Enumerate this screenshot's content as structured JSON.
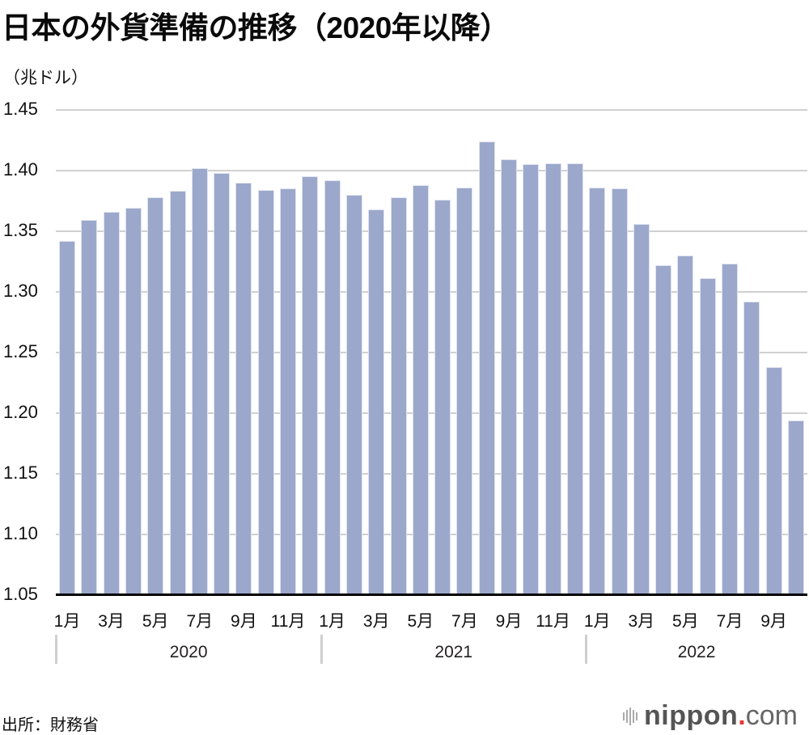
{
  "title": "日本の外貨準備の推移（2020年以降）",
  "unit_label": "（兆ドル）",
  "source": "出所：財務省",
  "logo": {
    "brand": "nippon",
    "dot": ".",
    "suffix": "com"
  },
  "colors": {
    "bar": "#9ba8cb",
    "grid": "#d0d0d0",
    "axis": "#000000",
    "logo_dot": "#e53935"
  },
  "chart_data": {
    "type": "bar",
    "title": "日本の外貨準備の推移（2020年以降）",
    "xlabel": "",
    "ylabel": "兆ドル",
    "ylim": [
      1.05,
      1.45
    ],
    "yticks": [
      "1.45",
      "1.40",
      "1.35",
      "1.30",
      "1.25",
      "1.20",
      "1.15",
      "1.10",
      "1.05"
    ],
    "grid": true,
    "legend": null,
    "categories": [
      "2020-01",
      "2020-02",
      "2020-03",
      "2020-04",
      "2020-05",
      "2020-06",
      "2020-07",
      "2020-08",
      "2020-09",
      "2020-10",
      "2020-11",
      "2020-12",
      "2021-01",
      "2021-02",
      "2021-03",
      "2021-04",
      "2021-05",
      "2021-06",
      "2021-07",
      "2021-08",
      "2021-09",
      "2021-10",
      "2021-11",
      "2021-12",
      "2022-01",
      "2022-02",
      "2022-03",
      "2022-04",
      "2022-05",
      "2022-06",
      "2022-07",
      "2022-08",
      "2022-09",
      "2022-10"
    ],
    "values": [
      1.342,
      1.359,
      1.366,
      1.369,
      1.378,
      1.383,
      1.402,
      1.398,
      1.39,
      1.384,
      1.385,
      1.395,
      1.392,
      1.38,
      1.368,
      1.378,
      1.388,
      1.376,
      1.386,
      1.424,
      1.409,
      1.405,
      1.406,
      1.406,
      1.386,
      1.385,
      1.356,
      1.322,
      1.33,
      1.311,
      1.323,
      1.292,
      1.238,
      1.194
    ],
    "xtick_labels": [
      {
        "index": 0,
        "label": "1月"
      },
      {
        "index": 2,
        "label": "3月"
      },
      {
        "index": 4,
        "label": "5月"
      },
      {
        "index": 6,
        "label": "7月"
      },
      {
        "index": 8,
        "label": "9月"
      },
      {
        "index": 10,
        "label": "11月"
      },
      {
        "index": 12,
        "label": "1月"
      },
      {
        "index": 14,
        "label": "3月"
      },
      {
        "index": 16,
        "label": "5月"
      },
      {
        "index": 18,
        "label": "7月"
      },
      {
        "index": 20,
        "label": "9月"
      },
      {
        "index": 22,
        "label": "11月"
      },
      {
        "index": 24,
        "label": "1月"
      },
      {
        "index": 26,
        "label": "3月"
      },
      {
        "index": 28,
        "label": "5月"
      },
      {
        "index": 30,
        "label": "7月"
      },
      {
        "index": 32,
        "label": "9月"
      }
    ],
    "year_groups": [
      {
        "label": "2020",
        "start": 0,
        "end": 11
      },
      {
        "label": "2021",
        "start": 12,
        "end": 23
      },
      {
        "label": "2022",
        "start": 24,
        "end": 33
      }
    ]
  }
}
